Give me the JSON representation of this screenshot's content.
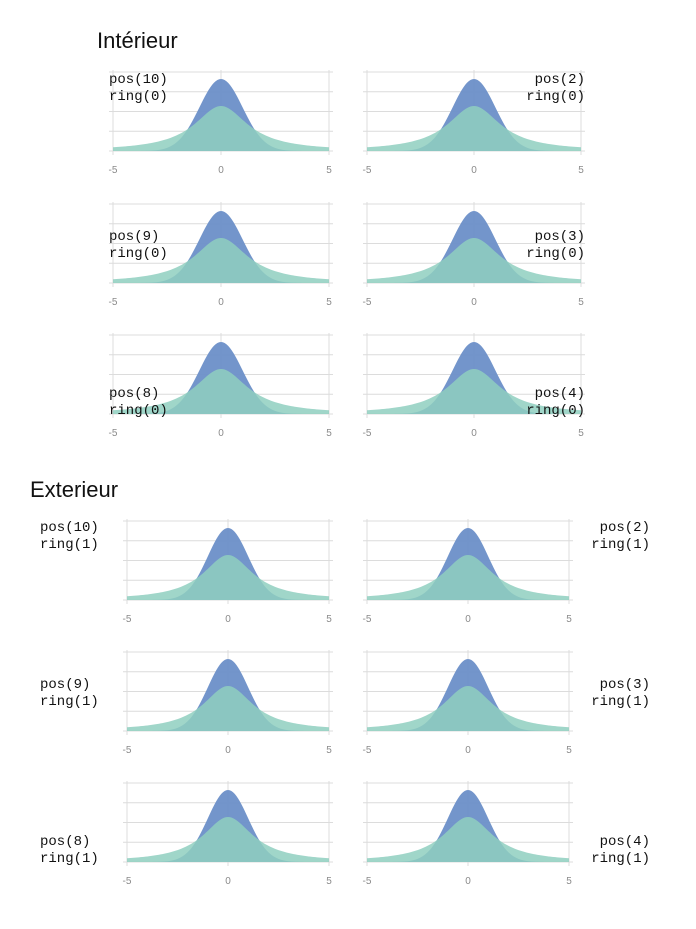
{
  "sections": [
    {
      "title": "Intérieur"
    },
    {
      "title": "Exterieur"
    }
  ],
  "colors": {
    "narrow": "#6b8fc8",
    "wide": "#8fcfc0",
    "grid": "#dcdcdc",
    "tick_text": "#8a8a8a"
  },
  "chart_data": {
    "type": "area",
    "x_ticks": [
      "-5",
      "0",
      "5"
    ],
    "xlim": [
      -5,
      5
    ],
    "ylim": [
      0,
      0.45
    ],
    "grid": "on",
    "curves": [
      {
        "shape": "normal",
        "sd": 1.0,
        "peak": 0.4
      },
      {
        "shape": "cauchy-like",
        "scale": 1.5,
        "peak": 0.25
      }
    ],
    "panels": [
      {
        "pos": "pos(10)",
        "ring": "ring(0)"
      },
      {
        "pos": "pos(2)",
        "ring": "ring(0)"
      },
      {
        "pos": "pos(9)",
        "ring": "ring(0)"
      },
      {
        "pos": "pos(3)",
        "ring": "ring(0)"
      },
      {
        "pos": "pos(8)",
        "ring": "ring(0)"
      },
      {
        "pos": "pos(4)",
        "ring": "ring(0)"
      },
      {
        "pos": "pos(10)",
        "ring": "ring(1)"
      },
      {
        "pos": "pos(2)",
        "ring": "ring(1)"
      },
      {
        "pos": "pos(9)",
        "ring": "ring(1)"
      },
      {
        "pos": "pos(3)",
        "ring": "ring(1)"
      },
      {
        "pos": "pos(8)",
        "ring": "ring(1)"
      },
      {
        "pos": "pos(4)",
        "ring": "ring(1)"
      }
    ]
  }
}
